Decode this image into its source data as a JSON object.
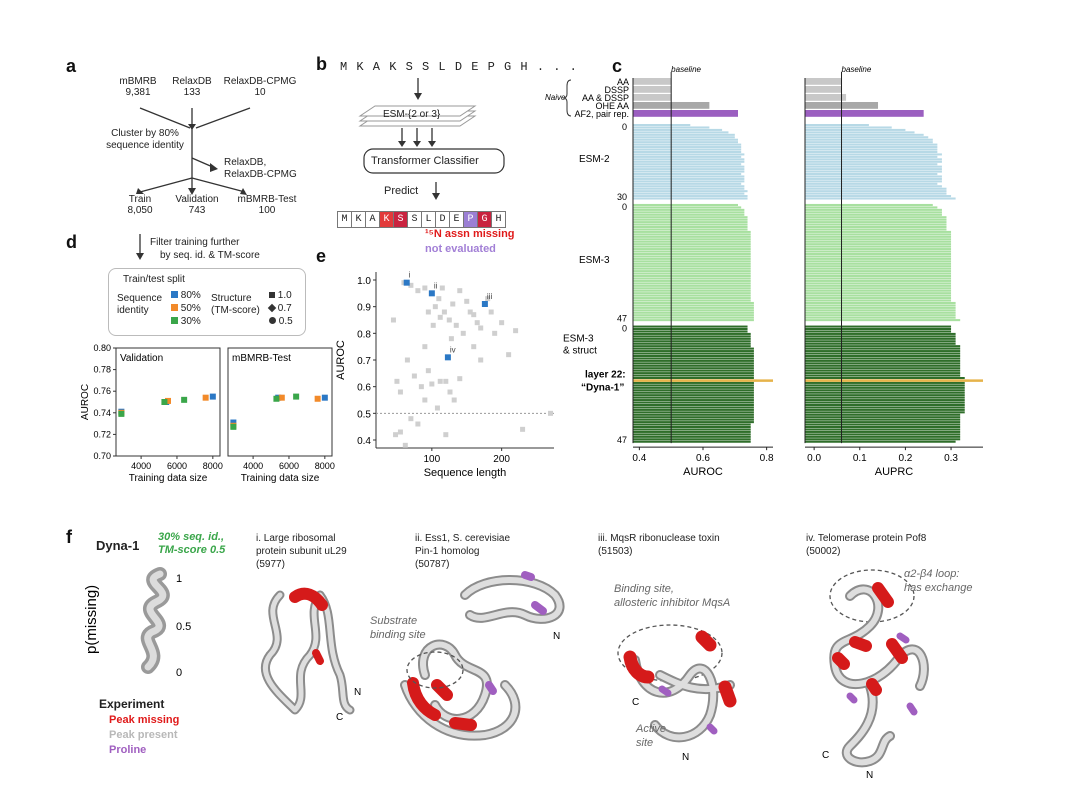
{
  "panel_a": {
    "letter": "a",
    "sources": [
      {
        "name": "mBMRB",
        "count": "9,381"
      },
      {
        "name": "RelaxDB",
        "count": "133"
      },
      {
        "name": "RelaxDB-CPMG",
        "count": "10"
      }
    ],
    "cluster_label_1": "Cluster by 80%",
    "cluster_label_2": "sequence identity",
    "side_label_1": "RelaxDB,",
    "side_label_2": "RelaxDB-CPMG",
    "splits": [
      {
        "name": "Train",
        "count": "8,050"
      },
      {
        "name": "Validation",
        "count": "743"
      },
      {
        "name": "mBMRB-Test",
        "count": "100"
      }
    ]
  },
  "panel_b": {
    "letter": "b",
    "sequence": "M K A K S S L D E P G H . . .",
    "esm_label": "ESM-{2 or 3}",
    "classifier_label": "Transformer Classifier",
    "predict_label": "Predict",
    "cells": [
      "M",
      "K",
      "A",
      "K",
      "S",
      "S",
      "L",
      "D",
      "E",
      "P",
      "G",
      "H"
    ],
    "cell_colors": [
      "#fff",
      "#fff",
      "#fff",
      "#e23a3a",
      "#c9233f",
      "#fff",
      "#fff",
      "#fff",
      "#fff",
      "#9b7fd4",
      "#c9233f",
      "#fff"
    ],
    "missing_label": "¹⁵N assn missing",
    "not_eval_label": "not evaluated"
  },
  "panel_c": {
    "letter": "c",
    "baseline_label": "baseline",
    "naive_label": "Naive",
    "naive_rows": [
      "AA",
      "DSSP",
      "AA & DSSP",
      "OHE AA",
      "AF2, pair rep."
    ],
    "group_labels": {
      "esm2": "ESM-2",
      "esm3": "ESM-3",
      "esm3s_1": "ESM-3",
      "esm3s_2": "& struct"
    },
    "layer_ticks": {
      "esm2_start": "0",
      "esm2_end": "30",
      "esm3_start": "0",
      "esm3_end": "47",
      "esm3s_start": "0",
      "esm3s_end": "47"
    },
    "highlight_1": "layer 22:",
    "highlight_2": "“Dyna-1”",
    "xlabel_left": "AUROC",
    "xlabel_right": "AUPRC",
    "ticks_left": [
      "0.4",
      "0.6",
      "0.8"
    ],
    "ticks_right": [
      "0.0",
      "0.1",
      "0.2",
      "0.3"
    ],
    "colors": {
      "naive": "#c8c8c8",
      "ohe": "#a8a8a8",
      "af2": "#9b5fc0",
      "esm2": "#b7d9e6",
      "esm3": "#a8e0a0",
      "esm3s": "#2f6e2a",
      "highlight": "#e6b34a"
    }
  },
  "panel_d": {
    "letter": "d",
    "filter_1": "Filter training further",
    "filter_2": "by seq. id. & TM-score",
    "legend_title": "Train/test split",
    "seq_label_1": "Sequence",
    "seq_label_2": "identity",
    "seq_entries": [
      "80%",
      "50%",
      "30%"
    ],
    "struct_label_1": "Structure",
    "struct_label_2": "(TM-score)",
    "struct_entries": [
      "1.0",
      "0.7",
      "0.5"
    ],
    "colors": {
      "s80": "#2b78c5",
      "s50": "#f28a2a",
      "s30": "#3aa64a"
    }
  },
  "panel_e": {
    "letter": "e",
    "xlabel": "Sequence length",
    "ylabel": "AUROC",
    "xticks": [
      "100",
      "200"
    ],
    "yticks": [
      "1.0",
      "0.9",
      "0.8",
      "0.7",
      "0.6",
      "0.5",
      "0.4"
    ],
    "highlight_labels": [
      "i",
      "ii",
      "iii",
      "iv"
    ]
  },
  "panel_f": {
    "letter": "f",
    "dyna_label": "Dyna-1",
    "green_note_1": "30% seq. id.,",
    "green_note_2": "TM-score 0.5",
    "pmissing": "p(missing)",
    "scale_ticks": [
      "1",
      "0.5",
      "0"
    ],
    "experiment_label": "Experiment",
    "exp_items": [
      {
        "label": "Peak missing",
        "color": "#e01a1a"
      },
      {
        "label": "Peak present",
        "color": "#b8b8b8"
      },
      {
        "label": "Proline",
        "color": "#a05fc0"
      }
    ],
    "proteins": [
      {
        "title_1": "i. Large ribosomal",
        "title_2": "protein subunit uL29",
        "id": "(5977)"
      },
      {
        "title_1": "ii. Ess1, S. cerevisiae",
        "title_2": "Pin-1 homolog",
        "id": "(50787)"
      },
      {
        "title_1": "iii. MqsR ribonuclease toxin",
        "title_2": "",
        "id": "(51503)"
      },
      {
        "title_1": "iv. Telomerase protein Pof8",
        "title_2": "",
        "id": "(50002)"
      }
    ],
    "notes": {
      "substrate_1": "Substrate",
      "substrate_2": "binding site",
      "binding_1": "Binding site,",
      "binding_2": "allosteric inhibitor MqsA",
      "active_1": "Active",
      "active_2": "site",
      "loop_1": "α2-β4 loop:",
      "loop_2": "has exchange"
    },
    "terminals": [
      "N",
      "C"
    ]
  },
  "chart_data": [
    {
      "type": "scatter",
      "panel": "d-validation",
      "title": "Validation",
      "xlabel": "Training data size",
      "ylabel": "AUROC",
      "xticks": [
        4000,
        6000,
        8000
      ],
      "yticks": [
        0.7,
        0.72,
        0.74,
        0.76,
        0.78,
        0.8
      ],
      "xlim": [
        2600,
        8400
      ],
      "ylim": [
        0.7,
        0.8
      ],
      "series": [
        {
          "name": "80%",
          "color": "#2b78c5",
          "points": [
            [
              2900,
              0.741
            ],
            [
              5400,
              0.75
            ],
            [
              8000,
              0.755
            ]
          ]
        },
        {
          "name": "50%",
          "color": "#f28a2a",
          "points": [
            [
              2900,
              0.74
            ],
            [
              5500,
              0.751
            ],
            [
              7600,
              0.754
            ]
          ]
        },
        {
          "name": "30%",
          "color": "#3aa64a",
          "points": [
            [
              2900,
              0.739
            ],
            [
              5300,
              0.75
            ],
            [
              6400,
              0.752
            ]
          ]
        }
      ]
    },
    {
      "type": "scatter",
      "panel": "d-test",
      "title": "mBMRB-Test",
      "xlabel": "Training data size",
      "xticks": [
        4000,
        6000,
        8000
      ],
      "xlim": [
        2600,
        8400
      ],
      "ylim": [
        0.7,
        0.8
      ],
      "series": [
        {
          "name": "80%",
          "color": "#2b78c5",
          "points": [
            [
              2900,
              0.731
            ],
            [
              5400,
              0.754
            ],
            [
              8000,
              0.754
            ]
          ]
        },
        {
          "name": "50%",
          "color": "#f28a2a",
          "points": [
            [
              2900,
              0.728
            ],
            [
              5600,
              0.754
            ],
            [
              7600,
              0.753
            ]
          ]
        },
        {
          "name": "30%",
          "color": "#3aa64a",
          "points": [
            [
              2900,
              0.727
            ],
            [
              5300,
              0.753
            ],
            [
              6400,
              0.755
            ]
          ]
        }
      ]
    },
    {
      "type": "scatter",
      "panel": "e",
      "xlabel": "Sequence length",
      "ylabel": "AUROC",
      "xlim": [
        20,
        275
      ],
      "ylim": [
        0.37,
        1.03
      ],
      "baseline": 0.5,
      "points_grey": [
        [
          60,
          0.99
        ],
        [
          70,
          0.98
        ],
        [
          80,
          0.96
        ],
        [
          90,
          0.97
        ],
        [
          95,
          0.88
        ],
        [
          100,
          0.95
        ],
        [
          105,
          0.9
        ],
        [
          110,
          0.93
        ],
        [
          112,
          0.86
        ],
        [
          115,
          0.97
        ],
        [
          118,
          0.88
        ],
        [
          125,
          0.85
        ],
        [
          128,
          0.78
        ],
        [
          130,
          0.91
        ],
        [
          135,
          0.83
        ],
        [
          140,
          0.96
        ],
        [
          145,
          0.8
        ],
        [
          150,
          0.92
        ],
        [
          155,
          0.88
        ],
        [
          160,
          0.75
        ],
        [
          165,
          0.84
        ],
        [
          170,
          0.82
        ],
        [
          180,
          0.93
        ],
        [
          185,
          0.88
        ],
        [
          190,
          0.8
        ],
        [
          200,
          0.84
        ],
        [
          210,
          0.72
        ],
        [
          220,
          0.81
        ],
        [
          45,
          0.85
        ],
        [
          50,
          0.62
        ],
        [
          55,
          0.58
        ],
        [
          65,
          0.7
        ],
        [
          75,
          0.64
        ],
        [
          85,
          0.6
        ],
        [
          90,
          0.55
        ],
        [
          95,
          0.66
        ],
        [
          100,
          0.61
        ],
        [
          108,
          0.52
        ],
        [
          112,
          0.62
        ],
        [
          120,
          0.62
        ],
        [
          126,
          0.58
        ],
        [
          132,
          0.55
        ],
        [
          140,
          0.63
        ],
        [
          48,
          0.42
        ],
        [
          55,
          0.43
        ],
        [
          62,
          0.38
        ],
        [
          70,
          0.48
        ],
        [
          80,
          0.46
        ],
        [
          120,
          0.42
        ],
        [
          230,
          0.44
        ],
        [
          270,
          0.5
        ],
        [
          102,
          0.83
        ],
        [
          90,
          0.75
        ],
        [
          160,
          0.87
        ],
        [
          170,
          0.7
        ]
      ],
      "points_highlight": [
        {
          "label": "i",
          "x": 64,
          "y": 0.99
        },
        {
          "label": "ii",
          "x": 100,
          "y": 0.95
        },
        {
          "label": "iii",
          "x": 176,
          "y": 0.91
        },
        {
          "label": "iv",
          "x": 123,
          "y": 0.71
        }
      ]
    },
    {
      "type": "bar",
      "panel": "c-auroc",
      "xlabel": "AUROC",
      "xlim": [
        0.38,
        0.82
      ],
      "baseline": 0.5,
      "naive": [
        0.5,
        0.5,
        0.5,
        0.62,
        0.71
      ],
      "esm2": [
        0.56,
        0.62,
        0.66,
        0.68,
        0.7,
        0.7,
        0.71,
        0.71,
        0.72,
        0.72,
        0.72,
        0.72,
        0.73,
        0.72,
        0.73,
        0.73,
        0.72,
        0.73,
        0.73,
        0.73,
        0.72,
        0.73,
        0.73,
        0.73,
        0.72,
        0.73,
        0.73,
        0.74,
        0.73,
        0.74,
        0.74
      ],
      "esm3": [
        0.71,
        0.72,
        0.73,
        0.73,
        0.73,
        0.74,
        0.74,
        0.74,
        0.74,
        0.74,
        0.74,
        0.75,
        0.75,
        0.75,
        0.75,
        0.75,
        0.75,
        0.75,
        0.75,
        0.75,
        0.75,
        0.75,
        0.75,
        0.75,
        0.75,
        0.75,
        0.75,
        0.75,
        0.75,
        0.75,
        0.75,
        0.75,
        0.75,
        0.75,
        0.75,
        0.75,
        0.75,
        0.75,
        0.75,
        0.75,
        0.76,
        0.76,
        0.76,
        0.76,
        0.76,
        0.76,
        0.76,
        0.76
      ],
      "esm3_struct": [
        0.74,
        0.74,
        0.74,
        0.75,
        0.75,
        0.75,
        0.75,
        0.75,
        0.75,
        0.76,
        0.76,
        0.76,
        0.76,
        0.76,
        0.76,
        0.76,
        0.76,
        0.76,
        0.76,
        0.76,
        0.76,
        0.76,
        0.77,
        0.76,
        0.76,
        0.76,
        0.76,
        0.76,
        0.76,
        0.76,
        0.76,
        0.76,
        0.76,
        0.76,
        0.76,
        0.76,
        0.76,
        0.76,
        0.76,
        0.76,
        0.75,
        0.75,
        0.75,
        0.75,
        0.75,
        0.75,
        0.75,
        0.75
      ],
      "highlight_index": 22
    },
    {
      "type": "bar",
      "panel": "c-auprc",
      "xlabel": "AUPRC",
      "xlim": [
        -0.02,
        0.37
      ],
      "baseline": 0.06,
      "naive": [
        0.06,
        0.06,
        0.07,
        0.14,
        0.24
      ],
      "esm2": [
        0.12,
        0.17,
        0.2,
        0.22,
        0.24,
        0.25,
        0.26,
        0.26,
        0.27,
        0.27,
        0.27,
        0.27,
        0.28,
        0.27,
        0.28,
        0.28,
        0.27,
        0.28,
        0.28,
        0.28,
        0.27,
        0.28,
        0.28,
        0.28,
        0.27,
        0.28,
        0.29,
        0.29,
        0.29,
        0.3,
        0.31
      ],
      "esm3": [
        0.26,
        0.27,
        0.28,
        0.28,
        0.28,
        0.29,
        0.29,
        0.29,
        0.29,
        0.29,
        0.29,
        0.3,
        0.3,
        0.3,
        0.3,
        0.3,
        0.3,
        0.3,
        0.3,
        0.3,
        0.3,
        0.3,
        0.3,
        0.3,
        0.3,
        0.3,
        0.3,
        0.3,
        0.3,
        0.3,
        0.3,
        0.3,
        0.3,
        0.3,
        0.3,
        0.3,
        0.3,
        0.3,
        0.3,
        0.3,
        0.31,
        0.31,
        0.31,
        0.31,
        0.31,
        0.31,
        0.31,
        0.32
      ],
      "esm3_struct": [
        0.3,
        0.3,
        0.3,
        0.31,
        0.31,
        0.31,
        0.31,
        0.31,
        0.32,
        0.32,
        0.32,
        0.32,
        0.32,
        0.32,
        0.32,
        0.32,
        0.32,
        0.32,
        0.32,
        0.32,
        0.32,
        0.33,
        0.34,
        0.33,
        0.33,
        0.33,
        0.33,
        0.33,
        0.33,
        0.33,
        0.33,
        0.33,
        0.33,
        0.33,
        0.33,
        0.33,
        0.32,
        0.32,
        0.32,
        0.32,
        0.32,
        0.32,
        0.32,
        0.32,
        0.32,
        0.32,
        0.32,
        0.31
      ],
      "highlight_index": 22
    }
  ]
}
